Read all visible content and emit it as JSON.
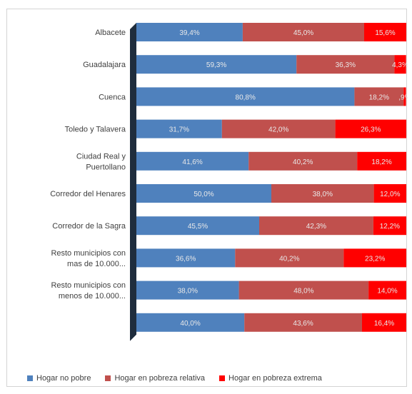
{
  "chart_data": {
    "type": "bar",
    "orientation": "horizontal",
    "stacked": "percent",
    "categories": [
      [
        "Albacete"
      ],
      [
        "Guadalajara"
      ],
      [
        "Cuenca"
      ],
      [
        "Toledo y Talavera"
      ],
      [
        "Ciudad Real y",
        "Puertollano"
      ],
      [
        "Corredor del Henares"
      ],
      [
        "Corredor de la Sagra"
      ],
      [
        "Resto municipios con",
        "mas de 10.000..."
      ],
      [
        "Resto municipios con",
        "menos de 10.000..."
      ],
      [
        ""
      ]
    ],
    "series": [
      {
        "name": "Hogar no pobre",
        "color": "#4f81bd",
        "values": [
          39.4,
          59.3,
          80.8,
          31.7,
          41.6,
          50.0,
          45.5,
          36.6,
          38.0,
          40.0
        ],
        "labels": [
          "39,4%",
          "59,3%",
          "80,8%",
          "31,7%",
          "41,6%",
          "50,0%",
          "45,5%",
          "36,6%",
          "38,0%",
          "40,0%"
        ]
      },
      {
        "name": "Hogar en pobreza relativa",
        "color": "#c0504d",
        "values": [
          45.0,
          36.3,
          18.2,
          42.0,
          40.2,
          38.0,
          42.3,
          40.2,
          48.0,
          43.6
        ],
        "labels": [
          "45,0%",
          "36,3%",
          "18,2%",
          "42,0%",
          "40,2%",
          "38,0%",
          "42,3%",
          "40,2%",
          "48,0%",
          "43,6%"
        ]
      },
      {
        "name": "Hogar en pobreza extrema",
        "color": "#ff0000",
        "values": [
          15.6,
          4.3,
          0.9,
          26.3,
          18.2,
          12.0,
          12.2,
          23.2,
          14.0,
          16.4
        ],
        "labels": [
          "15,6%",
          "4,3%",
          ",9%",
          "26,3%",
          "18,2%",
          "12,0%",
          "12,2%",
          "23,2%",
          "14,0%",
          "16,4%"
        ]
      }
    ],
    "xlim": [
      0,
      100
    ],
    "grid": false,
    "legend": "bottom"
  }
}
